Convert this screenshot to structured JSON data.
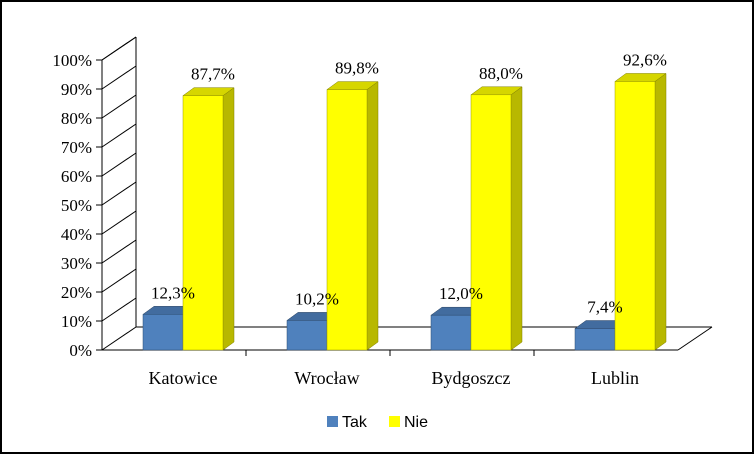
{
  "chart_data": {
    "type": "bar",
    "categories": [
      "Katowice",
      "Wrocław",
      "Bydgoszcz",
      "Lublin"
    ],
    "series": [
      {
        "name": "Tak",
        "values": [
          12.3,
          10.2,
          12.0,
          7.4
        ],
        "labels": [
          "12,3%",
          "10,2%",
          "12,0%",
          "7,4%"
        ],
        "color": "#4f81bd"
      },
      {
        "name": "Nie",
        "values": [
          87.7,
          89.8,
          88.0,
          92.6
        ],
        "labels": [
          "87,7%",
          "89,8%",
          "88,0%",
          "92,6%"
        ],
        "color": "#ffff00"
      }
    ],
    "yticks": [
      "0%",
      "10%",
      "20%",
      "30%",
      "40%",
      "50%",
      "60%",
      "70%",
      "80%",
      "90%",
      "100%"
    ],
    "ylim": [
      0,
      100
    ],
    "grid": false,
    "three_d": true,
    "legend_position": "bottom"
  }
}
